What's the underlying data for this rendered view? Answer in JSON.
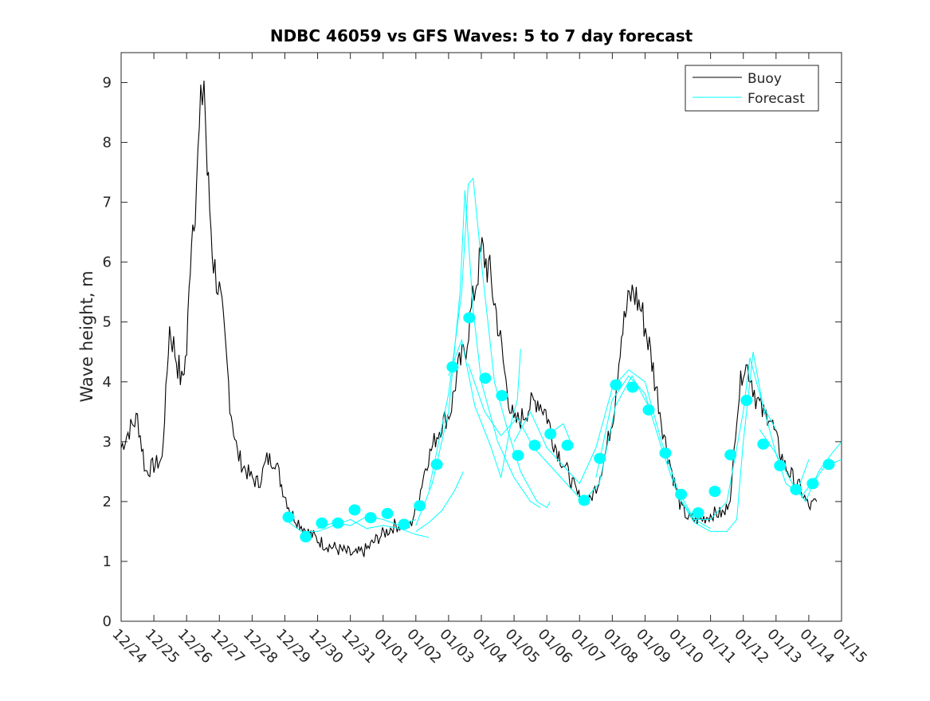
{
  "chart_data": {
    "type": "line",
    "title": "NDBC 46059 vs GFS Waves: 5 to 7 day forecast",
    "xlabel": "",
    "ylabel": "Wave height, m",
    "ylim": [
      0,
      9.5
    ],
    "xlim_days": [
      0,
      22
    ],
    "x_unit": "days since 12/24",
    "x_tick_labels": [
      "12/24",
      "12/25",
      "12/26",
      "12/27",
      "12/28",
      "12/29",
      "12/30",
      "12/31",
      "01/01",
      "01/02",
      "01/03",
      "01/04",
      "01/05",
      "01/06",
      "01/07",
      "01/08",
      "01/09",
      "01/10",
      "01/11",
      "01/12",
      "01/13",
      "01/14",
      "01/15"
    ],
    "y_ticks": [
      0,
      1,
      2,
      3,
      4,
      5,
      6,
      7,
      8,
      9
    ],
    "grid": false,
    "legend": {
      "placement": "top-right",
      "entries": [
        {
          "label": "Buoy",
          "color": "#000000"
        },
        {
          "label": "Forecast",
          "color": "#00ffff"
        }
      ]
    },
    "colors": {
      "buoy": "#000000",
      "forecast": "#00ffff",
      "markers": "#00ffff"
    },
    "buoy": [
      [
        0,
        2.9
      ],
      [
        0.25,
        3.2
      ],
      [
        0.5,
        3.4
      ],
      [
        0.75,
        2.5
      ],
      [
        1.0,
        2.6
      ],
      [
        1.25,
        2.7
      ],
      [
        1.48,
        4.9
      ],
      [
        1.85,
        4.0
      ],
      [
        2.0,
        4.5
      ],
      [
        2.15,
        6.5
      ],
      [
        2.26,
        7.0
      ],
      [
        2.43,
        8.5
      ],
      [
        2.53,
        9.1
      ],
      [
        2.63,
        7.5
      ],
      [
        2.82,
        6.0
      ],
      [
        3.0,
        5.5
      ],
      [
        3.16,
        4.7
      ],
      [
        3.36,
        3.5
      ],
      [
        3.55,
        2.8
      ],
      [
        3.72,
        2.6
      ],
      [
        3.97,
        2.4
      ],
      [
        4.2,
        2.3
      ],
      [
        4.45,
        2.7
      ],
      [
        4.7,
        2.7
      ],
      [
        4.94,
        2.2
      ],
      [
        5.2,
        1.8
      ],
      [
        5.67,
        1.5
      ],
      [
        6.16,
        1.3
      ],
      [
        6.64,
        1.2
      ],
      [
        7.13,
        1.1
      ],
      [
        7.5,
        1.2
      ],
      [
        7.86,
        1.4
      ],
      [
        8.35,
        1.6
      ],
      [
        8.83,
        1.6
      ],
      [
        9.07,
        2.0
      ],
      [
        9.3,
        2.6
      ],
      [
        9.56,
        3.0
      ],
      [
        9.8,
        3.3
      ],
      [
        10.05,
        3.5
      ],
      [
        10.29,
        4.2
      ],
      [
        10.53,
        4.6
      ],
      [
        10.78,
        5.5
      ],
      [
        11.02,
        6.2
      ],
      [
        11.26,
        5.8
      ],
      [
        11.5,
        5.0
      ],
      [
        11.75,
        4.0
      ],
      [
        11.99,
        3.3
      ],
      [
        12.24,
        3.4
      ],
      [
        12.48,
        3.6
      ],
      [
        12.72,
        3.7
      ],
      [
        12.97,
        3.5
      ],
      [
        13.21,
        3.0
      ],
      [
        13.45,
        2.7
      ],
      [
        13.7,
        2.4
      ],
      [
        13.94,
        2.1
      ],
      [
        14.3,
        2.0
      ],
      [
        14.55,
        2.3
      ],
      [
        14.79,
        2.8
      ],
      [
        15.04,
        3.5
      ],
      [
        15.28,
        4.8
      ],
      [
        15.52,
        5.4
      ],
      [
        15.65,
        5.5
      ],
      [
        15.89,
        5.2
      ],
      [
        16.13,
        4.6
      ],
      [
        16.37,
        3.8
      ],
      [
        16.62,
        3.0
      ],
      [
        16.86,
        2.4
      ],
      [
        17.1,
        1.9
      ],
      [
        17.35,
        1.7
      ],
      [
        17.71,
        1.7
      ],
      [
        18.08,
        1.8
      ],
      [
        18.44,
        1.8
      ],
      [
        18.64,
        2.2
      ],
      [
        18.8,
        3.5
      ],
      [
        19.0,
        4.3
      ],
      [
        19.17,
        4.2
      ],
      [
        19.42,
        3.7
      ],
      [
        19.66,
        3.4
      ],
      [
        19.78,
        3.5
      ],
      [
        20.02,
        3.0
      ],
      [
        20.27,
        2.6
      ],
      [
        20.51,
        2.4
      ],
      [
        20.75,
        2.2
      ],
      [
        21.0,
        1.9
      ],
      [
        21.24,
        2.0
      ]
    ],
    "forecast_runs": [
      [
        [
          5.0,
          1.7
        ],
        [
          5.5,
          1.5
        ],
        [
          6.0,
          1.5
        ],
        [
          6.5,
          1.6
        ],
        [
          7.0,
          1.7
        ],
        [
          7.5,
          1.55
        ],
        [
          8.0,
          1.6
        ],
        [
          8.5,
          1.55
        ],
        [
          9.0,
          1.45
        ],
        [
          9.4,
          1.4
        ]
      ],
      [
        [
          6.0,
          1.55
        ],
        [
          6.5,
          1.65
        ],
        [
          7.0,
          1.6
        ],
        [
          7.5,
          1.75
        ],
        [
          8.0,
          1.7
        ],
        [
          8.5,
          1.6
        ],
        [
          9.0,
          1.7
        ]
      ],
      [
        [
          9.0,
          1.5
        ],
        [
          9.4,
          1.65
        ],
        [
          9.8,
          1.85
        ],
        [
          10.2,
          2.2
        ],
        [
          10.45,
          2.5
        ]
      ],
      [
        [
          9.0,
          1.6
        ],
        [
          9.5,
          2.3
        ],
        [
          10.0,
          3.5
        ],
        [
          10.35,
          5.5
        ],
        [
          10.5,
          7.2
        ],
        [
          10.75,
          5.2
        ],
        [
          11.0,
          4.0
        ],
        [
          11.5,
          3.0
        ],
        [
          12.0,
          2.4
        ],
        [
          12.5,
          2.0
        ],
        [
          12.8,
          1.9
        ]
      ],
      [
        [
          9.4,
          2.2
        ],
        [
          10.0,
          3.8
        ],
        [
          10.4,
          5.5
        ],
        [
          10.6,
          7.3
        ],
        [
          10.75,
          7.4
        ],
        [
          11.0,
          6.0
        ],
        [
          11.4,
          4.0
        ],
        [
          11.8,
          3.2
        ],
        [
          12.2,
          2.5
        ],
        [
          12.7,
          2.0
        ],
        [
          13.0,
          1.9
        ],
        [
          13.1,
          2.0
        ]
      ],
      [
        [
          10.0,
          4.1
        ],
        [
          10.4,
          4.7
        ],
        [
          10.8,
          3.6
        ],
        [
          11.3,
          2.9
        ],
        [
          11.6,
          2.4
        ],
        [
          11.9,
          3.3
        ],
        [
          12.1,
          3.7
        ],
        [
          12.2,
          4.55
        ]
      ],
      [
        [
          10.6,
          4.3
        ],
        [
          11.1,
          3.5
        ],
        [
          11.6,
          3.1
        ],
        [
          12.1,
          3.4
        ],
        [
          12.6,
          2.9
        ],
        [
          13.1,
          2.6
        ],
        [
          13.6,
          2.3
        ],
        [
          14.1,
          2.0
        ],
        [
          14.6,
          2.3
        ],
        [
          15.1,
          3.6
        ],
        [
          15.6,
          4.1
        ],
        [
          16.1,
          3.6
        ]
      ],
      [
        [
          12.0,
          3.0
        ],
        [
          12.5,
          3.5
        ],
        [
          13.0,
          2.9
        ],
        [
          13.5,
          2.6
        ],
        [
          14.0,
          2.3
        ],
        [
          14.5,
          2.9
        ],
        [
          15.0,
          3.9
        ],
        [
          15.5,
          4.2
        ],
        [
          16.0,
          4.0
        ],
        [
          16.5,
          3.0
        ],
        [
          17.0,
          2.2
        ],
        [
          17.5,
          1.7
        ],
        [
          18.0,
          1.55
        ]
      ],
      [
        [
          13.0,
          3.1
        ],
        [
          13.5,
          3.3
        ],
        [
          13.8,
          2.9
        ]
      ],
      [
        [
          14.5,
          2.4
        ],
        [
          15.0,
          3.7
        ],
        [
          15.5,
          4.1
        ],
        [
          16.0,
          3.8
        ],
        [
          16.5,
          2.9
        ],
        [
          17.0,
          2.1
        ],
        [
          17.5,
          1.65
        ],
        [
          18.0,
          1.5
        ],
        [
          18.5,
          1.5
        ],
        [
          18.8,
          1.7
        ],
        [
          19.0,
          3.0
        ],
        [
          19.3,
          4.5
        ],
        [
          19.6,
          3.6
        ],
        [
          20.0,
          3.2
        ]
      ],
      [
        [
          17.0,
          2.1
        ],
        [
          17.5,
          1.7
        ],
        [
          18.0,
          1.7
        ],
        [
          18.5,
          2.0
        ],
        [
          19.0,
          3.5
        ],
        [
          19.2,
          4.4
        ],
        [
          19.5,
          3.8
        ],
        [
          20.0,
          2.8
        ],
        [
          20.3,
          2.3
        ],
        [
          20.8,
          2.1
        ],
        [
          21.2,
          2.4
        ]
      ],
      [
        [
          19.5,
          3.2
        ],
        [
          20.0,
          2.8
        ],
        [
          20.5,
          2.3
        ],
        [
          20.9,
          2.0
        ],
        [
          21.3,
          2.5
        ],
        [
          21.7,
          2.8
        ],
        [
          22.0,
          3.0
        ]
      ],
      [
        [
          20.6,
          2.1
        ],
        [
          21.0,
          2.7
        ]
      ],
      [
        [
          21.0,
          2.2
        ],
        [
          21.5,
          2.6
        ],
        [
          22.0,
          2.7
        ]
      ]
    ],
    "markers": [
      [
        5.11,
        1.74
      ],
      [
        5.64,
        1.41
      ],
      [
        6.13,
        1.64
      ],
      [
        6.62,
        1.64
      ],
      [
        7.13,
        1.86
      ],
      [
        7.62,
        1.73
      ],
      [
        8.13,
        1.8
      ],
      [
        8.64,
        1.62
      ],
      [
        9.12,
        1.93
      ],
      [
        9.64,
        2.62
      ],
      [
        10.12,
        4.25
      ],
      [
        10.63,
        5.07
      ],
      [
        11.12,
        4.06
      ],
      [
        11.63,
        3.77
      ],
      [
        12.12,
        2.77
      ],
      [
        12.63,
        2.94
      ],
      [
        13.11,
        3.13
      ],
      [
        13.63,
        2.94
      ],
      [
        14.14,
        2.02
      ],
      [
        14.62,
        2.72
      ],
      [
        15.11,
        3.95
      ],
      [
        15.62,
        3.91
      ],
      [
        16.11,
        3.53
      ],
      [
        16.62,
        2.81
      ],
      [
        17.1,
        2.12
      ],
      [
        17.62,
        1.81
      ],
      [
        18.13,
        2.17
      ],
      [
        18.61,
        2.78
      ],
      [
        19.1,
        3.69
      ],
      [
        19.61,
        2.96
      ],
      [
        20.12,
        2.6
      ],
      [
        20.61,
        2.2
      ],
      [
        21.12,
        2.3
      ],
      [
        21.61,
        2.62
      ]
    ]
  }
}
